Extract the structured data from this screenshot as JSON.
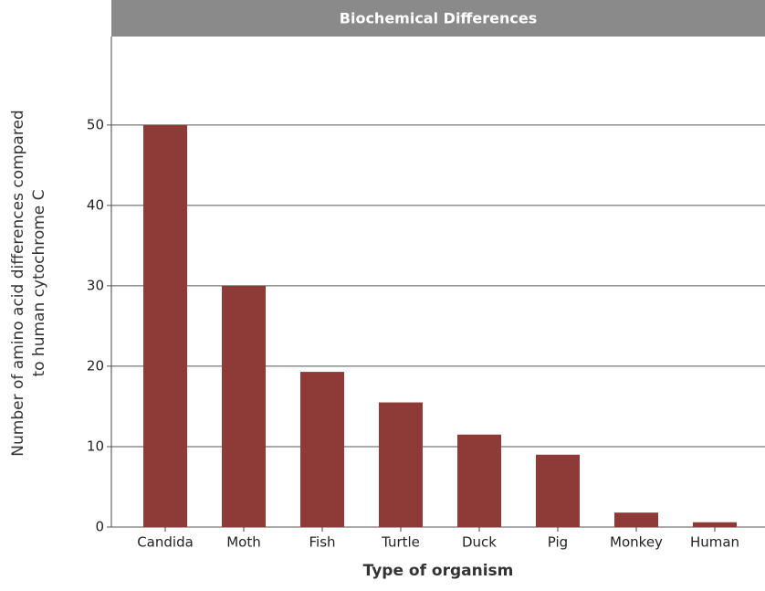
{
  "chart_data": {
    "type": "bar",
    "title": "Biochemical Differences",
    "x_label": "Type of organism",
    "y_label": [
      "Number of amino acid differences compared",
      "to human cytochrome C"
    ],
    "categories": [
      "Candida",
      "Moth",
      "Fish",
      "Turtle",
      "Duck",
      "Pig",
      "Monkey",
      "Human"
    ],
    "values": [
      50,
      30,
      19.3,
      15.5,
      11.5,
      9,
      1.8,
      0.6
    ],
    "color": "#8e3a36",
    "ylim": [
      0,
      61
    ],
    "yticks": [
      0,
      10,
      20,
      30,
      40,
      50
    ],
    "grid": true
  }
}
